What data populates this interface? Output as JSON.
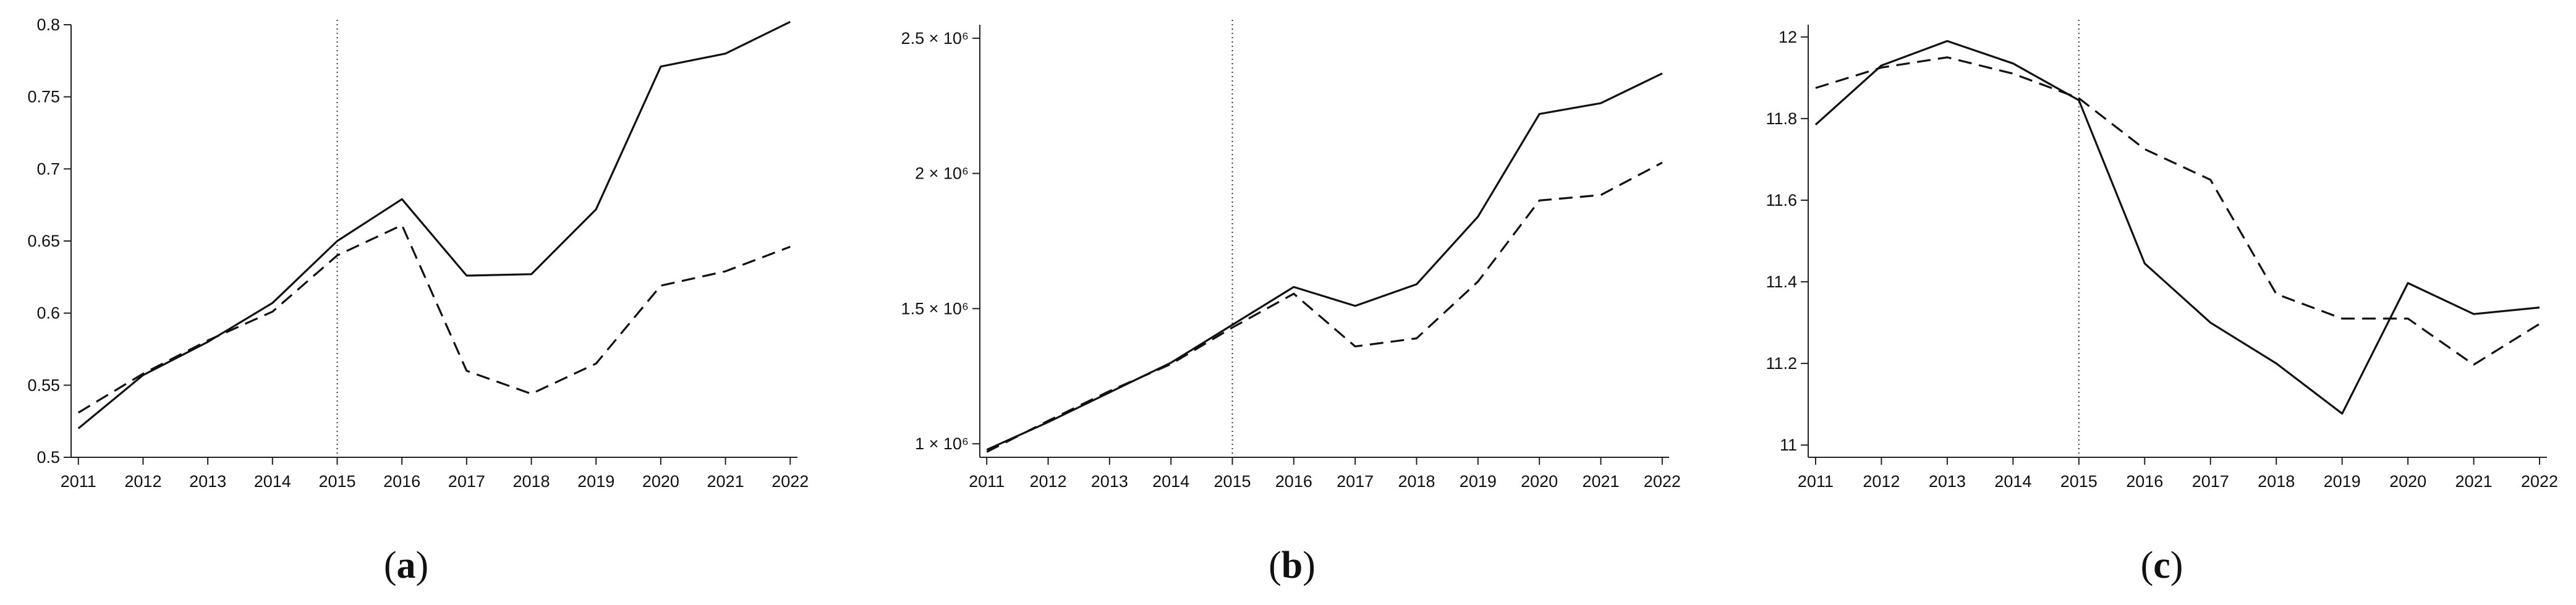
{
  "chart_data": [
    {
      "type": "line",
      "panel_label": "a",
      "categories": [
        "2011",
        "2012",
        "2013",
        "2014",
        "2015",
        "2016",
        "2017",
        "2018",
        "2019",
        "2020",
        "2021",
        "2022"
      ],
      "ylim": [
        0.5,
        0.8
      ],
      "yticks": [
        0.5,
        0.55,
        0.6,
        0.65,
        0.7,
        0.75,
        0.8
      ],
      "ytick_labels": [
        "0.5",
        "0.55",
        "0.6",
        "0.65",
        "0.7",
        "0.75",
        "0.8"
      ],
      "vline_at": "2015",
      "grid": false,
      "series": [
        {
          "style": "solid",
          "values": [
            0.52,
            0.557,
            0.58,
            0.607,
            0.65,
            0.679,
            0.626,
            0.627,
            0.672,
            0.771,
            0.78,
            0.802
          ]
        },
        {
          "style": "dashed",
          "values": [
            0.531,
            0.558,
            0.581,
            0.601,
            0.64,
            0.661,
            0.56,
            0.544,
            0.565,
            0.619,
            0.629,
            0.646
          ]
        }
      ]
    },
    {
      "type": "line",
      "panel_label": "b",
      "categories": [
        "2011",
        "2012",
        "2013",
        "2014",
        "2015",
        "2016",
        "2017",
        "2018",
        "2019",
        "2020",
        "2021",
        "2022"
      ],
      "ylim": [
        950000,
        2550000
      ],
      "yticks": [
        1000000,
        1500000,
        2000000,
        2500000
      ],
      "ytick_labels": [
        "1 × 10⁶",
        "1.5 × 10⁶",
        "2 × 10⁶",
        "2.5 × 10⁶"
      ],
      "vline_at": "2015",
      "grid": false,
      "series": [
        {
          "style": "solid",
          "values": [
            978000,
            1080000,
            1190000,
            1300000,
            1440000,
            1580000,
            1510000,
            1590000,
            1840000,
            2220000,
            2260000,
            2370000
          ]
        },
        {
          "style": "dashed",
          "values": [
            970000,
            1085000,
            1195000,
            1295000,
            1430000,
            1555000,
            1360000,
            1390000,
            1600000,
            1900000,
            1920000,
            2040000
          ]
        }
      ]
    },
    {
      "type": "line",
      "panel_label": "c",
      "categories": [
        "2011",
        "2012",
        "2013",
        "2014",
        "2015",
        "2016",
        "2017",
        "2018",
        "2019",
        "2020",
        "2021",
        "2022"
      ],
      "ylim": [
        10.97,
        12.03
      ],
      "yticks": [
        11,
        11.2,
        11.4,
        11.6,
        11.8,
        12
      ],
      "ytick_labels": [
        "11",
        "11.2",
        "11.4",
        "11.6",
        "11.8",
        "12"
      ],
      "vline_at": "2015",
      "grid": false,
      "series": [
        {
          "style": "solid",
          "values": [
            11.785,
            11.93,
            11.99,
            11.935,
            11.845,
            11.445,
            11.3,
            11.2,
            11.077,
            11.397,
            11.321,
            11.337
          ]
        },
        {
          "style": "dashed",
          "values": [
            11.875,
            11.925,
            11.95,
            11.91,
            11.85,
            11.725,
            11.65,
            11.37,
            11.31,
            11.31,
            11.197,
            11.297
          ]
        }
      ]
    }
  ],
  "panel_labels": [
    {
      "open": "(",
      "letter": "a",
      "close": ")"
    },
    {
      "open": "(",
      "letter": "b",
      "close": ")"
    },
    {
      "open": "(",
      "letter": "c",
      "close": ")"
    }
  ],
  "colors": {
    "line": "#111111",
    "axis": "#222222",
    "vline": "#333333"
  }
}
